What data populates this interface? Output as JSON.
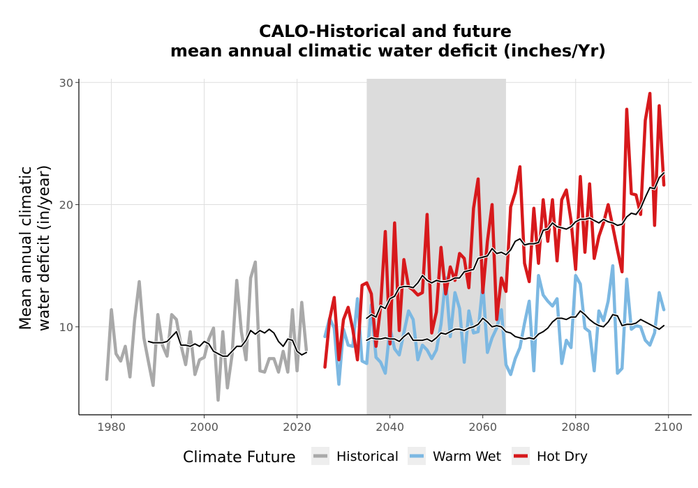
{
  "chart_data": {
    "type": "line",
    "title_lines": [
      "CALO-Historical and future",
      "mean annual climatic water deficit (inches/Yr)"
    ],
    "ylabel_lines": [
      "Mean annual climatic",
      "water deficit (in/year)"
    ],
    "xlabel": "",
    "xlim": [
      1973,
      2105
    ],
    "ylim": [
      2.8,
      30.3
    ],
    "x_ticks": [
      1980,
      2000,
      2020,
      2040,
      2060,
      2080,
      2100
    ],
    "y_ticks": [
      10,
      20,
      30
    ],
    "grid": true,
    "legend_position": "bottom",
    "legend_title": "Climate Future",
    "shaded_period": [
      2035,
      2065
    ],
    "series": [
      {
        "name": "Historical",
        "color": "#a9a9a9",
        "x": [
          1979,
          1980,
          1981,
          1982,
          1983,
          1984,
          1985,
          1986,
          1987,
          1988,
          1989,
          1990,
          1991,
          1992,
          1993,
          1994,
          1995,
          1996,
          1997,
          1998,
          1999,
          2000,
          2001,
          2002,
          2003,
          2004,
          2005,
          2006,
          2007,
          2008,
          2009,
          2010,
          2011,
          2012,
          2013,
          2014,
          2015,
          2016,
          2017,
          2018,
          2019,
          2020,
          2021,
          2022
        ],
        "values": [
          5.7,
          11.4,
          7.8,
          7.2,
          8.4,
          5.9,
          10.5,
          13.7,
          9.1,
          7.1,
          5.2,
          11.0,
          8.5,
          7.6,
          11.0,
          10.6,
          8.5,
          6.9,
          9.6,
          6.1,
          7.3,
          7.5,
          9.0,
          9.9,
          4.0,
          9.6,
          5.0,
          7.7,
          13.8,
          9.6,
          7.3,
          14.0,
          15.3,
          6.4,
          6.3,
          7.4,
          7.4,
          6.3,
          8.0,
          6.3,
          11.4,
          6.4,
          12.0,
          8.1
        ]
      },
      {
        "name": "Warm Wet",
        "color": "#7cb8e2",
        "x": [
          2026,
          2027,
          2028,
          2029,
          2030,
          2031,
          2032,
          2033,
          2034,
          2035,
          2036,
          2037,
          2038,
          2039,
          2040,
          2041,
          2042,
          2043,
          2044,
          2045,
          2046,
          2047,
          2048,
          2049,
          2050,
          2051,
          2052,
          2053,
          2054,
          2055,
          2056,
          2057,
          2058,
          2059,
          2060,
          2061,
          2062,
          2063,
          2064,
          2065,
          2066,
          2067,
          2068,
          2069,
          2070,
          2071,
          2072,
          2073,
          2074,
          2075,
          2076,
          2077,
          2078,
          2079,
          2080,
          2081,
          2082,
          2083,
          2084,
          2085,
          2086,
          2087,
          2088,
          2089,
          2090,
          2091,
          2092,
          2093,
          2094,
          2095,
          2096,
          2097,
          2098,
          2099
        ],
        "values": [
          9.2,
          10.7,
          9.9,
          5.3,
          9.8,
          8.5,
          8.4,
          12.3,
          7.2,
          7.0,
          11.8,
          7.5,
          7.1,
          6.2,
          9.9,
          8.2,
          7.7,
          9.5,
          11.3,
          10.6,
          7.3,
          8.5,
          8.1,
          7.4,
          8.1,
          10.2,
          14.0,
          9.2,
          12.8,
          11.5,
          7.1,
          11.3,
          9.5,
          9.6,
          13.5,
          7.9,
          9.1,
          9.9,
          11.4,
          6.9,
          6.1,
          7.4,
          8.3,
          10.3,
          12.1,
          6.4,
          14.2,
          12.6,
          12.1,
          11.7,
          12.3,
          7.0,
          8.9,
          8.3,
          14.2,
          13.5,
          9.9,
          9.6,
          6.4,
          11.3,
          10.5,
          12.1,
          15.0,
          6.2,
          6.6,
          13.9,
          9.8,
          10.1,
          10.0,
          8.9,
          8.5,
          9.5,
          12.8,
          11.4
        ]
      },
      {
        "name": "Hot Dry",
        "color": "#d7191c",
        "x": [
          2026,
          2027,
          2028,
          2029,
          2030,
          2031,
          2032,
          2033,
          2034,
          2035,
          2036,
          2037,
          2038,
          2039,
          2040,
          2041,
          2042,
          2043,
          2044,
          2045,
          2046,
          2047,
          2048,
          2049,
          2050,
          2051,
          2052,
          2053,
          2054,
          2055,
          2056,
          2057,
          2058,
          2059,
          2060,
          2061,
          2062,
          2063,
          2064,
          2065,
          2066,
          2067,
          2068,
          2069,
          2070,
          2071,
          2072,
          2073,
          2074,
          2075,
          2076,
          2077,
          2078,
          2079,
          2080,
          2081,
          2082,
          2083,
          2084,
          2085,
          2086,
          2087,
          2088,
          2089,
          2090,
          2091,
          2092,
          2093,
          2094,
          2095,
          2096,
          2097,
          2098,
          2099
        ],
        "values": [
          6.7,
          10.6,
          12.4,
          7.3,
          10.6,
          11.6,
          9.8,
          7.3,
          13.4,
          13.6,
          12.7,
          8.4,
          11.7,
          17.8,
          8.6,
          18.5,
          9.7,
          15.5,
          13.3,
          13.0,
          12.6,
          12.8,
          19.2,
          9.5,
          11.2,
          16.5,
          12.7,
          14.9,
          13.8,
          16.0,
          15.6,
          13.2,
          19.7,
          22.1,
          12.8,
          17.0,
          20.0,
          10.6,
          14.0,
          12.9,
          19.8,
          21.0,
          23.1,
          15.2,
          13.7,
          19.7,
          15.2,
          20.4,
          17.0,
          20.4,
          15.4,
          20.4,
          21.2,
          18.7,
          14.7,
          22.3,
          16.1,
          21.7,
          15.6,
          17.4,
          18.5,
          20.0,
          18.2,
          16.3,
          14.5,
          27.8,
          20.9,
          20.8,
          19.2,
          26.9,
          29.1,
          18.3,
          28.1,
          21.6
        ]
      },
      {
        "name": "",
        "role": "historical-smoothed",
        "color": "#000000",
        "x": [
          1988,
          1989,
          1990,
          1991,
          1992,
          1993,
          1994,
          1995,
          1996,
          1997,
          1998,
          1999,
          2000,
          2001,
          2002,
          2003,
          2004,
          2005,
          2006,
          2007,
          2008,
          2009,
          2010,
          2011,
          2012,
          2013,
          2014,
          2015,
          2016,
          2017,
          2018,
          2019,
          2020,
          2021,
          2022
        ],
        "values": [
          8.8,
          8.7,
          8.7,
          8.7,
          8.8,
          9.2,
          9.6,
          8.5,
          8.5,
          8.4,
          8.6,
          8.4,
          8.8,
          8.6,
          8.0,
          7.8,
          7.6,
          7.6,
          8.0,
          8.4,
          8.4,
          8.9,
          9.7,
          9.4,
          9.7,
          9.5,
          9.8,
          9.5,
          8.8,
          8.4,
          9.0,
          8.9,
          8.0,
          7.7,
          7.9
        ]
      },
      {
        "name": "",
        "role": "warm-wet-smoothed",
        "color": "#000000",
        "x": [
          2035,
          2036,
          2037,
          2038,
          2039,
          2040,
          2041,
          2042,
          2043,
          2044,
          2045,
          2046,
          2047,
          2048,
          2049,
          2050,
          2051,
          2052,
          2053,
          2054,
          2055,
          2056,
          2057,
          2058,
          2059,
          2060,
          2061,
          2062,
          2063,
          2064,
          2065,
          2066,
          2067,
          2068,
          2069,
          2070,
          2071,
          2072,
          2073,
          2074,
          2075,
          2076,
          2077,
          2078,
          2079,
          2080,
          2081,
          2082,
          2083,
          2084,
          2085,
          2086,
          2087,
          2088,
          2089,
          2090,
          2091,
          2092,
          2093,
          2094,
          2095,
          2096,
          2097,
          2098,
          2099
        ],
        "values": [
          8.9,
          9.1,
          9.0,
          9.0,
          9.1,
          9.0,
          9.0,
          8.8,
          9.2,
          9.5,
          8.9,
          8.9,
          8.9,
          9.0,
          8.8,
          9.1,
          9.5,
          9.4,
          9.6,
          9.8,
          9.8,
          9.7,
          9.9,
          10.0,
          10.2,
          10.7,
          10.4,
          10.0,
          10.1,
          10.0,
          9.6,
          9.5,
          9.2,
          9.1,
          9.0,
          9.1,
          9.0,
          9.4,
          9.6,
          9.9,
          10.4,
          10.7,
          10.7,
          10.6,
          10.8,
          10.8,
          11.3,
          11.0,
          10.6,
          10.3,
          10.1,
          10.0,
          10.4,
          11.0,
          10.9,
          10.1,
          10.2,
          10.2,
          10.3,
          10.6,
          10.4,
          10.2,
          10.0,
          9.8,
          10.1
        ]
      },
      {
        "name": "",
        "role": "hot-dry-smoothed",
        "color": "#000000",
        "x": [
          2035,
          2036,
          2037,
          2038,
          2039,
          2040,
          2041,
          2042,
          2043,
          2044,
          2045,
          2046,
          2047,
          2048,
          2049,
          2050,
          2051,
          2052,
          2053,
          2054,
          2055,
          2056,
          2057,
          2058,
          2059,
          2060,
          2061,
          2062,
          2063,
          2064,
          2065,
          2066,
          2067,
          2068,
          2069,
          2070,
          2071,
          2072,
          2073,
          2074,
          2075,
          2076,
          2077,
          2078,
          2079,
          2080,
          2081,
          2082,
          2083,
          2084,
          2085,
          2086,
          2087,
          2088,
          2089,
          2090,
          2091,
          2092,
          2093,
          2094,
          2095,
          2096,
          2097,
          2098,
          2099
        ],
        "values": [
          10.7,
          11.0,
          10.8,
          11.7,
          11.5,
          12.3,
          12.5,
          13.2,
          13.3,
          13.3,
          13.2,
          13.6,
          14.2,
          13.8,
          13.6,
          13.8,
          13.7,
          13.7,
          13.8,
          14.0,
          14.0,
          14.5,
          14.6,
          14.7,
          15.6,
          15.7,
          15.8,
          16.4,
          16.0,
          16.1,
          15.9,
          16.3,
          17.0,
          17.2,
          16.7,
          16.8,
          16.8,
          16.9,
          17.9,
          18.0,
          18.5,
          18.2,
          18.1,
          18.0,
          18.2,
          18.6,
          18.8,
          18.8,
          18.9,
          18.7,
          18.5,
          18.8,
          18.6,
          18.5,
          18.3,
          18.4,
          19.0,
          19.3,
          19.2,
          19.7,
          20.6,
          21.4,
          21.3,
          22.2,
          22.6
        ]
      }
    ]
  }
}
